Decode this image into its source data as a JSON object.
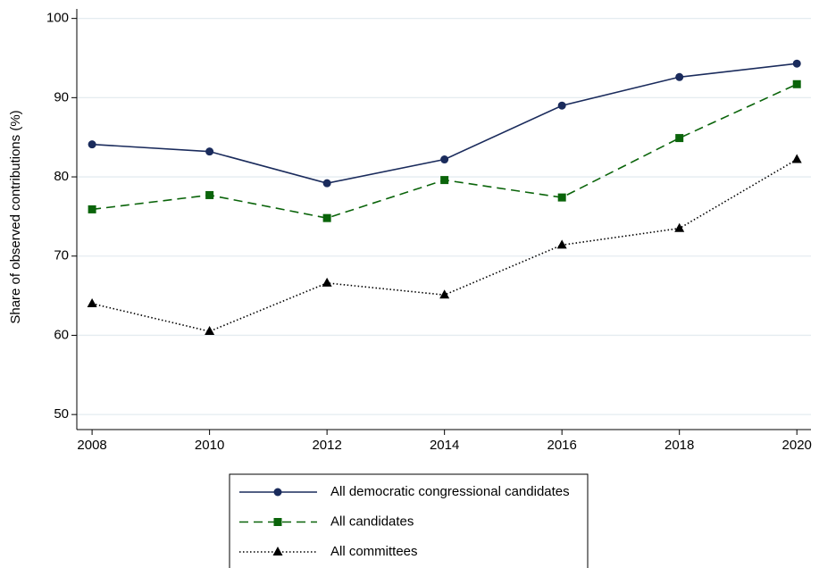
{
  "chart_data": {
    "type": "line",
    "y_label": "Share of observed contributions (%)",
    "x": [
      2008,
      2010,
      2012,
      2014,
      2016,
      2018,
      2020
    ],
    "series": [
      {
        "name": "All democratic congressional candidates",
        "color": "#1a2b5c",
        "dash": "solid",
        "marker": "circle",
        "values": [
          84.1,
          83.2,
          79.2,
          82.2,
          89.0,
          92.6,
          94.3
        ]
      },
      {
        "name": "All candidates",
        "color": "#0a640a",
        "dash": "dashed",
        "marker": "square",
        "values": [
          75.9,
          77.7,
          74.8,
          79.6,
          77.4,
          84.9,
          91.7
        ]
      },
      {
        "name": "All committees",
        "color": "#000000",
        "dash": "dotted",
        "marker": "triangle",
        "values": [
          64.0,
          60.5,
          66.6,
          65.1,
          71.4,
          73.5,
          82.2
        ]
      }
    ],
    "xlim": [
      2007.74,
      2020.24
    ],
    "xticks": [
      2008,
      2010,
      2012,
      2014,
      2016,
      2018,
      2020
    ],
    "ylim": [
      48.1,
      101.2
    ],
    "yticks": [
      50,
      60,
      70,
      80,
      90,
      100
    ],
    "grid": true,
    "legend": "bottom"
  }
}
